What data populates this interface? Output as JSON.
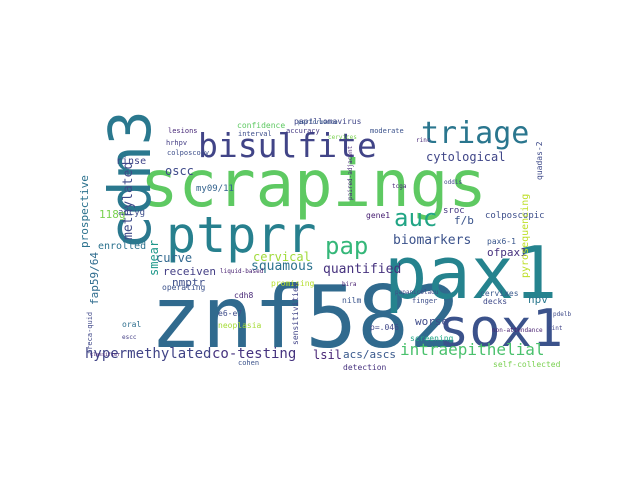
{
  "words": [
    {
      "text": "znf582",
      "color": "#306a8e",
      "rotate": false
    },
    {
      "text": "pax1",
      "color": "#25838e",
      "rotate": false
    },
    {
      "text": "scrapings",
      "color": "#5ec962",
      "rotate": false
    },
    {
      "text": "cdn3",
      "color": "#2a788e",
      "rotate": true
    },
    {
      "text": "sox1",
      "color": "#3b528b",
      "rotate": false
    },
    {
      "text": "ptprr",
      "color": "#27808e",
      "rotate": false
    },
    {
      "text": "bisulfite",
      "color": "#414487",
      "rotate": false
    },
    {
      "text": "triage",
      "color": "#2a768e",
      "rotate": false
    },
    {
      "text": "auc",
      "color": "#21a585",
      "rotate": false
    },
    {
      "text": "pap",
      "color": "#35b779",
      "rotate": false
    },
    {
      "text": "intraepithelial",
      "color": "#4ac16d",
      "rotate": false
    },
    {
      "text": "hypermethylated",
      "color": "#414487",
      "rotate": false
    },
    {
      "text": "co-testing",
      "color": "#46337f",
      "rotate": false
    },
    {
      "text": "cytological",
      "color": "#404688",
      "rotate": false
    },
    {
      "text": "methylated",
      "color": "#3e4a89",
      "rotate": true
    },
    {
      "text": "biomarkers",
      "color": "#3b528b",
      "rotate": false
    },
    {
      "text": "squamous",
      "color": "#2c728e",
      "rotate": false
    },
    {
      "text": "quantified",
      "color": "#46327e",
      "rotate": false
    },
    {
      "text": "cervical",
      "color": "#a0da39",
      "rotate": false
    },
    {
      "text": "curve",
      "color": "#31688e",
      "rotate": false
    },
    {
      "text": "oscc",
      "color": "#3e4989",
      "rotate": false
    },
    {
      "text": "smear",
      "color": "#1f988b",
      "rotate": true
    },
    {
      "text": "acs/ascs",
      "color": "#38588c",
      "rotate": false
    },
    {
      "text": "lsil",
      "color": "#482475",
      "rotate": false
    },
    {
      "text": "worse",
      "color": "#3e4a89",
      "rotate": false
    },
    {
      "text": "hpv",
      "color": "#2a788e",
      "rotate": false
    },
    {
      "text": "f/b",
      "color": "#3a548c",
      "rotate": false
    },
    {
      "text": "ofpax1",
      "color": "#46307e",
      "rotate": false
    },
    {
      "text": "receiven",
      "color": "#433e85",
      "rotate": false
    },
    {
      "text": "nmptr",
      "color": "#3d4e8a",
      "rotate": false
    },
    {
      "text": "enrolled",
      "color": "#2c728e",
      "rotate": false
    },
    {
      "text": "prospective",
      "color": "#2c728e",
      "rotate": true
    },
    {
      "text": "fap59/64",
      "color": "#2f6c8e",
      "rotate": true
    },
    {
      "text": "rinse",
      "color": "#404588",
      "rotate": false
    },
    {
      "text": "adcyg",
      "color": "#3d4d8a",
      "rotate": false
    },
    {
      "text": "118g",
      "color": "#7ad151",
      "rotate": false
    },
    {
      "text": "my09/11",
      "color": "#33628d",
      "rotate": false
    },
    {
      "text": "confidence",
      "color": "#5ec962",
      "rotate": false
    },
    {
      "text": "papillomavirus",
      "color": "#404688",
      "rotate": false
    },
    {
      "text": "sroc",
      "color": "#453781",
      "rotate": false
    },
    {
      "text": "gene1",
      "color": "#482173",
      "rotate": false
    },
    {
      "text": "colposcopic",
      "color": "#3d4e8a",
      "rotate": false
    },
    {
      "text": "operating",
      "color": "#3b518b",
      "rotate": false
    },
    {
      "text": "promising",
      "color": "#b5de2b",
      "rotate": false
    },
    {
      "text": "neoplasia",
      "color": "#a5db36",
      "rotate": false
    },
    {
      "text": "sensitivities",
      "color": "#414487",
      "rotate": true
    },
    {
      "text": "screening",
      "color": "#22a785",
      "rotate": false
    },
    {
      "text": "detection",
      "color": "#46327e",
      "rotate": false
    },
    {
      "text": "cervixes",
      "color": "#38598c",
      "rotate": false
    },
    {
      "text": "nilm",
      "color": "#3a548c",
      "rotate": false
    },
    {
      "text": "p=.046",
      "color": "#3f4788",
      "rotate": false
    },
    {
      "text": "e6-e7",
      "color": "#3e4c8a",
      "rotate": false
    },
    {
      "text": "cdh8",
      "color": "#482878",
      "rotate": false
    },
    {
      "text": "oral",
      "color": "#2e6f8e",
      "rotate": false
    },
    {
      "text": "non-attendance",
      "color": "#482071",
      "rotate": false
    },
    {
      "text": "self-collected",
      "color": "#7ad151",
      "rotate": false
    },
    {
      "text": "pyrosequencing",
      "color": "#bddf26",
      "rotate": true
    },
    {
      "text": "quadas-2",
      "color": "#3e4a89",
      "rotate": true
    },
    {
      "text": "interval",
      "color": "#3d4d8a",
      "rotate": false
    },
    {
      "text": "lesions",
      "color": "#482878",
      "rotate": false
    },
    {
      "text": "hrhpv",
      "color": "#433d84",
      "rotate": false
    },
    {
      "text": "colposcopy",
      "color": "#3d4e8a",
      "rotate": false
    },
    {
      "text": "accuracy",
      "color": "#453882",
      "rotate": false
    },
    {
      "text": "moderate",
      "color": "#3b528b",
      "rotate": false
    },
    {
      "text": "performance",
      "color": "#38588c",
      "rotate": false
    },
    {
      "text": "cervices",
      "color": "#7ad151",
      "rotate": false
    },
    {
      "text": "decks",
      "color": "#3e4989",
      "rotate": false
    },
    {
      "text": "finger",
      "color": "#3d4e8a",
      "rotate": false
    },
    {
      "text": "cohen",
      "color": "#3b528b",
      "rotate": false
    },
    {
      "text": "bira",
      "color": "#481f70",
      "rotate": false
    },
    {
      "text": "tcga",
      "color": "#482677",
      "rotate": false
    },
    {
      "text": "rinc",
      "color": "#482878",
      "rotate": false
    },
    {
      "text": "oddis",
      "color": "#3f4788",
      "rotate": false
    },
    {
      "text": "pdelb",
      "color": "#3e4a89",
      "rotate": false
    },
    {
      "text": "cint",
      "color": "#404588",
      "rotate": false
    },
    {
      "text": "liquid-based",
      "color": "#482071",
      "rotate": false
    },
    {
      "text": "paired-adjacent",
      "color": "#482878",
      "rotate": true
    },
    {
      "text": "classifier",
      "color": "#482173",
      "rotate": false
    },
    {
      "text": "papanicolaou",
      "color": "#404688",
      "rotate": false
    },
    {
      "text": "areca-quid",
      "color": "#3f4788",
      "rotate": true
    },
    {
      "text": "escc",
      "color": "#433e85",
      "rotate": false
    },
    {
      "text": "pax6-1",
      "color": "#39568c",
      "rotate": false
    }
  ]
}
